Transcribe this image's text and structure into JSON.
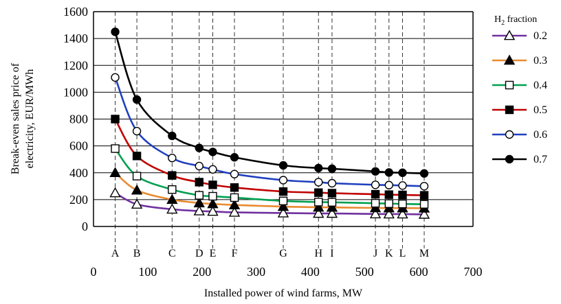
{
  "chart_data": {
    "type": "line",
    "xlabel": "Installed power of wind farms, MW",
    "ylabel_line1": "Break-even sales price of",
    "ylabel_line2": "electricity, EUR/MWh",
    "xlim": [
      0,
      700
    ],
    "ylim": [
      0,
      1600
    ],
    "x_ticks": [
      0,
      100,
      200,
      300,
      400,
      500,
      600,
      700
    ],
    "y_ticks": [
      0,
      200,
      400,
      600,
      800,
      1000,
      1200,
      1400,
      1600
    ],
    "site_letters": [
      "A",
      "B",
      "C",
      "D",
      "E",
      "F",
      "G",
      "H",
      "I",
      "J",
      "K",
      "L",
      "M"
    ],
    "x": [
      40,
      80,
      145,
      195,
      220,
      260,
      350,
      415,
      440,
      520,
      545,
      570,
      610
    ],
    "legend": {
      "title_prefix": "H",
      "title_sub": "2",
      "title_suffix": " fraction"
    },
    "series": [
      {
        "name": "0.2",
        "color": "#7030a0",
        "marker": "open-triangle",
        "values": [
          250,
          165,
          128,
          115,
          112,
          105,
          100,
          97,
          97,
          93,
          92,
          92,
          90
        ]
      },
      {
        "name": "0.3",
        "color": "#e88a30",
        "marker": "filled-triangle",
        "values": [
          400,
          270,
          200,
          175,
          168,
          160,
          148,
          143,
          142,
          138,
          137,
          137,
          136
        ]
      },
      {
        "name": "0.4",
        "color": "#00a050",
        "marker": "open-square",
        "values": [
          580,
          375,
          275,
          232,
          225,
          215,
          190,
          182,
          180,
          173,
          170,
          168,
          165
        ]
      },
      {
        "name": "0.5",
        "color": "#c00000",
        "marker": "filled-square",
        "values": [
          800,
          525,
          380,
          330,
          310,
          290,
          260,
          252,
          248,
          240,
          237,
          235,
          232
        ]
      },
      {
        "name": "0.6",
        "color": "#1f3fbf",
        "marker": "open-circle",
        "values": [
          1110,
          710,
          510,
          450,
          425,
          390,
          345,
          330,
          322,
          310,
          308,
          305,
          300
        ]
      },
      {
        "name": "0.7",
        "color": "#000000",
        "marker": "filled-circle",
        "values": [
          1450,
          945,
          675,
          585,
          555,
          515,
          455,
          435,
          430,
          410,
          402,
          400,
          395
        ]
      }
    ]
  }
}
